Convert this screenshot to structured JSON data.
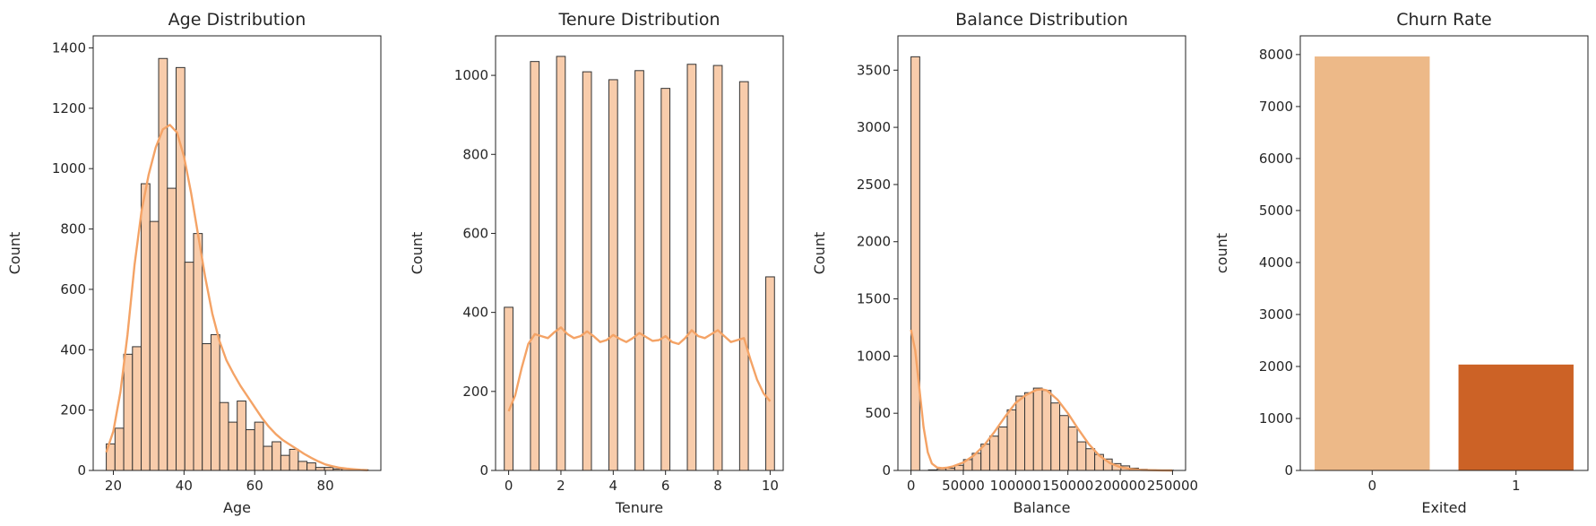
{
  "chart_data": [
    {
      "type": "bar",
      "title": "Age Distribution",
      "xlabel": "Age",
      "ylabel": "Count",
      "xlim": [
        14.3,
        95.7
      ],
      "ylim": [
        0,
        1440
      ],
      "xticks": [
        20,
        40,
        60,
        80
      ],
      "yticks": [
        0,
        200,
        400,
        600,
        800,
        1000,
        1200,
        1400
      ],
      "bin_width": 2.47,
      "bins_start": 18,
      "values": [
        88,
        140,
        385,
        410,
        950,
        825,
        1365,
        935,
        1335,
        690,
        785,
        420,
        450,
        225,
        160,
        230,
        135,
        160,
        80,
        95,
        50,
        70,
        30,
        25,
        10,
        10,
        5,
        5,
        2,
        2
      ],
      "kde": {
        "x": [
          18,
          20,
          22,
          24,
          26,
          28,
          30,
          32,
          34,
          36,
          38,
          40,
          42,
          44,
          46,
          48,
          50,
          52,
          54,
          56,
          58,
          60,
          62,
          64,
          66,
          68,
          70,
          72,
          74,
          76,
          78,
          80,
          82,
          84,
          86,
          88,
          90,
          92
        ],
        "y": [
          60,
          130,
          260,
          450,
          680,
          860,
          980,
          1070,
          1130,
          1145,
          1120,
          1040,
          920,
          780,
          640,
          520,
          430,
          365,
          320,
          280,
          245,
          210,
          175,
          145,
          120,
          100,
          85,
          70,
          55,
          42,
          30,
          20,
          14,
          9,
          6,
          4,
          2,
          1
        ]
      },
      "bar_color": "#f8ccab",
      "line_color": "#f4a366"
    },
    {
      "type": "bar",
      "title": "Tenure Distribution",
      "xlabel": "Tenure",
      "ylabel": "Count",
      "xlim": [
        -0.5,
        10.5
      ],
      "ylim": [
        0,
        1100
      ],
      "xticks": [
        0,
        2,
        4,
        6,
        8,
        10
      ],
      "yticks": [
        0,
        200,
        400,
        600,
        800,
        1000
      ],
      "bar_width": 0.333,
      "x": [
        0,
        1,
        2,
        3,
        4,
        5,
        6,
        7,
        8,
        9,
        10
      ],
      "values": [
        413,
        1035,
        1048,
        1009,
        989,
        1012,
        967,
        1028,
        1025,
        984,
        490
      ],
      "kde": {
        "x": [
          0,
          0.25,
          0.5,
          0.75,
          1,
          1.25,
          1.5,
          1.75,
          2,
          2.25,
          2.5,
          2.75,
          3,
          3.25,
          3.5,
          3.75,
          4,
          4.25,
          4.5,
          4.75,
          5,
          5.25,
          5.5,
          5.75,
          6,
          6.25,
          6.5,
          6.75,
          7,
          7.25,
          7.5,
          7.75,
          8,
          8.25,
          8.5,
          8.75,
          9,
          9.25,
          9.5,
          9.75,
          10
        ],
        "y": [
          150,
          190,
          260,
          320,
          345,
          340,
          335,
          350,
          362,
          345,
          335,
          340,
          352,
          340,
          325,
          330,
          343,
          333,
          325,
          335,
          348,
          338,
          328,
          330,
          340,
          325,
          320,
          335,
          355,
          340,
          335,
          345,
          355,
          340,
          325,
          330,
          335,
          280,
          230,
          195,
          175
        ]
      },
      "bar_color": "#f8ccab",
      "line_color": "#f4a366"
    },
    {
      "type": "bar",
      "title": "Balance Distribution",
      "xlabel": "Balance",
      "ylabel": "Count",
      "xlim": [
        -12500,
        262500
      ],
      "ylim": [
        0,
        3800
      ],
      "xticks": [
        0,
        50000,
        100000,
        150000,
        200000,
        250000
      ],
      "yticks": [
        0,
        500,
        1000,
        1500,
        2000,
        2500,
        3000,
        3500
      ],
      "bin_width": 8364,
      "bins_start": 0,
      "values": [
        3617,
        0,
        5,
        15,
        20,
        45,
        95,
        150,
        230,
        300,
        380,
        530,
        650,
        680,
        720,
        700,
        590,
        480,
        380,
        250,
        190,
        140,
        100,
        60,
        40,
        20,
        10,
        5,
        3,
        2
      ],
      "kde": {
        "x": [
          0,
          4000,
          8000,
          12000,
          16000,
          20000,
          25000,
          30000,
          35000,
          40000,
          50000,
          60000,
          70000,
          80000,
          90000,
          100000,
          110000,
          120000,
          125000,
          130000,
          140000,
          150000,
          160000,
          170000,
          180000,
          190000,
          200000,
          210000,
          220000,
          230000,
          240000,
          250000
        ],
        "y": [
          1230,
          1050,
          720,
          380,
          160,
          60,
          25,
          20,
          25,
          35,
          70,
          130,
          220,
          340,
          470,
          590,
          660,
          705,
          710,
          700,
          620,
          500,
          360,
          230,
          130,
          65,
          30,
          12,
          5,
          2,
          1,
          0
        ]
      },
      "bar_color": "#f8ccab",
      "line_color": "#f4a366"
    },
    {
      "type": "bar",
      "title": "Churn Rate",
      "xlabel": "Exited",
      "ylabel": "count",
      "ylim": [
        0,
        8360
      ],
      "yticks": [
        0,
        1000,
        2000,
        3000,
        4000,
        5000,
        6000,
        7000,
        8000
      ],
      "categories": [
        "0",
        "1"
      ],
      "values": [
        7963,
        2037
      ],
      "colors": [
        "#edb988",
        "#cc6226"
      ]
    }
  ]
}
